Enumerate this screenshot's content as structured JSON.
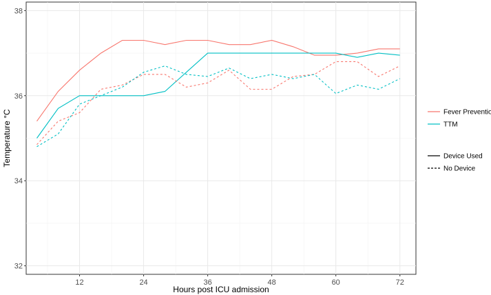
{
  "chart_data": {
    "type": "line",
    "xlabel": "Hours post ICU admission",
    "ylabel": "Temperature °C",
    "xlim": [
      2,
      75
    ],
    "ylim": [
      31.8,
      38.2
    ],
    "x_ticks": [
      12,
      24,
      36,
      48,
      60,
      72
    ],
    "y_ticks": [
      32,
      34,
      36,
      38
    ],
    "grid": true,
    "legend_placement": "right",
    "group_legend": [
      {
        "name": "Fever Prevention",
        "color": "#F8766D"
      },
      {
        "name": "TTM",
        "color": "#00BFC4"
      }
    ],
    "linetype_legend": [
      {
        "name": "Device Used",
        "dash": "solid"
      },
      {
        "name": "No Device",
        "dash": "dashed"
      }
    ],
    "series": [
      {
        "group": "Fever Prevention",
        "device": "Device Used",
        "color": "#F8766D",
        "dash": "solid",
        "x": [
          4,
          8,
          12,
          16,
          20,
          24,
          28,
          32,
          36,
          40,
          44,
          48,
          52,
          56,
          60,
          64,
          68,
          72
        ],
        "values": [
          35.4,
          36.1,
          36.6,
          37.0,
          37.3,
          37.3,
          37.2,
          37.3,
          37.3,
          37.2,
          37.2,
          37.3,
          37.15,
          36.95,
          36.95,
          37.0,
          37.1,
          37.1
        ]
      },
      {
        "group": "TTM",
        "device": "Device Used",
        "color": "#00BFC4",
        "dash": "solid",
        "x": [
          4,
          8,
          12,
          16,
          20,
          24,
          28,
          32,
          36,
          40,
          44,
          48,
          52,
          56,
          60,
          64,
          68,
          72
        ],
        "values": [
          35.0,
          35.7,
          36.0,
          36.0,
          36.0,
          36.0,
          36.1,
          36.55,
          37.0,
          37.0,
          37.0,
          37.0,
          37.0,
          37.0,
          37.0,
          36.9,
          37.0,
          36.95
        ]
      },
      {
        "group": "Fever Prevention",
        "device": "No Device",
        "color": "#F8766D",
        "dash": "dashed",
        "x": [
          4,
          8,
          12,
          16,
          20,
          24,
          28,
          32,
          36,
          40,
          44,
          48,
          52,
          56,
          60,
          64,
          68,
          72
        ],
        "values": [
          34.85,
          35.4,
          35.6,
          36.15,
          36.25,
          36.5,
          36.5,
          36.2,
          36.3,
          36.6,
          36.15,
          36.15,
          36.45,
          36.5,
          36.8,
          36.8,
          36.45,
          36.7
        ]
      },
      {
        "group": "TTM",
        "device": "No Device",
        "color": "#00BFC4",
        "dash": "dashed",
        "x": [
          4,
          8,
          12,
          16,
          20,
          24,
          28,
          32,
          36,
          40,
          44,
          48,
          52,
          56,
          60,
          64,
          68,
          72
        ],
        "values": [
          34.8,
          35.1,
          35.8,
          36.0,
          36.2,
          36.55,
          36.7,
          36.5,
          36.45,
          36.65,
          36.4,
          36.5,
          36.4,
          36.5,
          36.05,
          36.25,
          36.15,
          36.4
        ]
      }
    ]
  }
}
